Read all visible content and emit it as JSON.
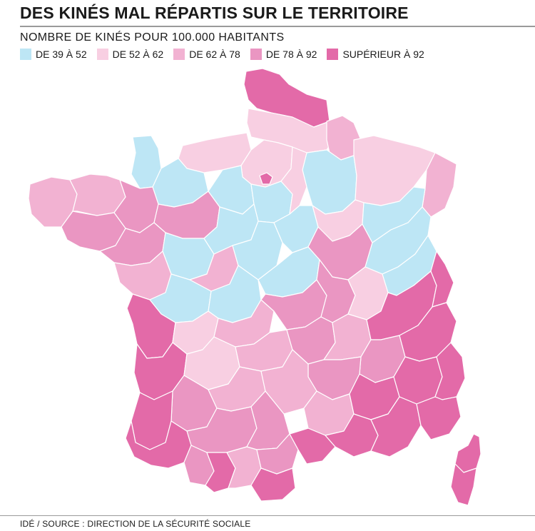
{
  "title": "DES KINÉS MAL RÉPARTIS SUR LE TERRITOIRE",
  "subtitle": "NOMBRE DE KINÉS POUR 100.000 HABITANTS",
  "legend": [
    {
      "label": "DE 39 À 52",
      "color": "#bde6f5"
    },
    {
      "label": "DE 52 À 62",
      "color": "#f8cfe2"
    },
    {
      "label": "DE 62 À 78",
      "color": "#f2b2d2"
    },
    {
      "label": "DE 78 À 92",
      "color": "#ea96c2"
    },
    {
      "label": "SUPÉRIEUR À 92",
      "color": "#e36aa8"
    }
  ],
  "source": "IDÉ / SOURCE : DIRECTION DE LA SÉCURITÉ SOCIALE"
}
